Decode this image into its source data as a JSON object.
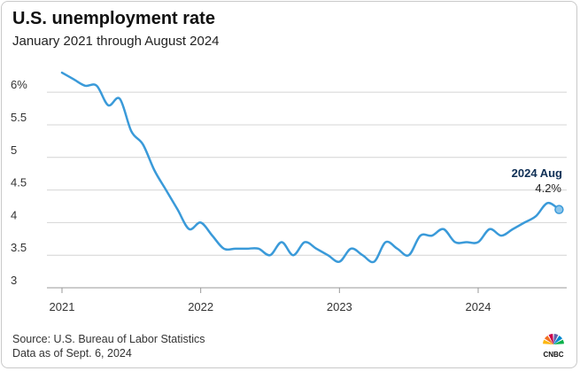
{
  "title": "U.S. unemployment rate",
  "subtitle": "January 2021 through August 2024",
  "source": "Source: U.S. Bureau of Labor Statistics",
  "data_date": "Data as of Sept. 6, 2024",
  "brand": {
    "name": "CNBC",
    "colors": [
      "#fcb711",
      "#f37021",
      "#cc004c",
      "#6460aa",
      "#0089d0",
      "#0db14b"
    ]
  },
  "chart_data": {
    "type": "line",
    "title": "U.S. unemployment rate",
    "subtitle": "January 2021 through August 2024",
    "xlabel": "",
    "ylabel": "",
    "x_tick_labels": [
      "2021",
      "2022",
      "2023",
      "2024"
    ],
    "y_tick_labels": [
      "3",
      "3.5",
      "4",
      "4.5",
      "5",
      "5.5",
      "6%"
    ],
    "y_ticks": [
      3,
      3.5,
      4,
      4.5,
      5,
      5.5,
      6
    ],
    "ylim": [
      3,
      6.6
    ],
    "xlim": [
      "2021-01",
      "2024-08"
    ],
    "grid": "horizontal",
    "line_color": "#3a9ad9",
    "annotation": {
      "label": "2024 Aug",
      "value_text": "4.2%",
      "x": "2024-08",
      "y": 4.2
    },
    "series": [
      {
        "x": [
          "2021-01",
          "2021-02",
          "2021-03",
          "2021-04",
          "2021-05",
          "2021-06",
          "2021-07",
          "2021-08",
          "2021-09",
          "2021-10",
          "2021-11",
          "2021-12",
          "2022-01",
          "2022-02",
          "2022-03",
          "2022-04",
          "2022-05",
          "2022-06",
          "2022-07",
          "2022-08",
          "2022-09",
          "2022-10",
          "2022-11",
          "2022-12",
          "2023-01",
          "2023-02",
          "2023-03",
          "2023-04",
          "2023-05",
          "2023-06",
          "2023-07",
          "2023-08",
          "2023-09",
          "2023-10",
          "2023-11",
          "2023-12",
          "2024-01",
          "2024-02",
          "2024-03",
          "2024-04",
          "2024-05",
          "2024-06",
          "2024-07",
          "2024-08"
        ],
        "values": [
          6.3,
          6.2,
          6.1,
          6.1,
          5.8,
          5.9,
          5.4,
          5.2,
          4.8,
          4.5,
          4.2,
          3.9,
          4.0,
          3.8,
          3.6,
          3.6,
          3.6,
          3.6,
          3.5,
          3.7,
          3.5,
          3.7,
          3.6,
          3.5,
          3.4,
          3.6,
          3.5,
          3.4,
          3.7,
          3.6,
          3.5,
          3.8,
          3.8,
          3.9,
          3.7,
          3.7,
          3.7,
          3.9,
          3.8,
          3.9,
          4.0,
          4.1,
          4.3,
          4.2
        ]
      }
    ]
  }
}
